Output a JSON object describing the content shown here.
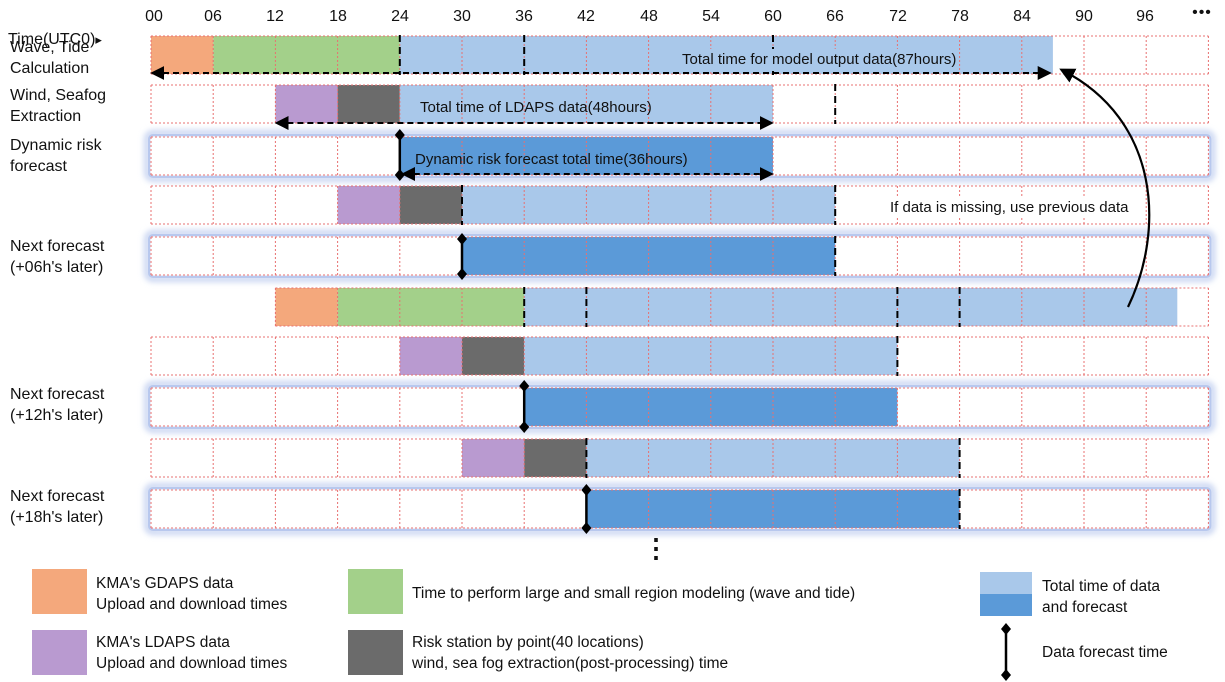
{
  "header": {
    "time_label": "Time(UTC0)",
    "time_arrow": "▸",
    "ellipsis": "•••"
  },
  "ticks": [
    "00",
    "06",
    "12",
    "18",
    "24",
    "30",
    "36",
    "42",
    "48",
    "54",
    "60",
    "66",
    "72",
    "78",
    "84",
    "90",
    "96"
  ],
  "colors": {
    "gdaps": "#f4a87c",
    "modeling": "#a3d08a",
    "ldaps": "#b99ad0",
    "risk_station": "#6b6b6b",
    "total_light": "#a9c8ea",
    "total_dark": "#5b9ad8",
    "grid": "#e87070",
    "glow": "#c9d5f2"
  },
  "rows": [
    {
      "label": "Wave, Tide\nCalculation"
    },
    {
      "label": "Wind, Seafog\nExtraction"
    },
    {
      "label": "Dynamic risk\nforecast"
    },
    {
      "label": ""
    },
    {
      "label": "Next forecast\n(+06h's later)"
    },
    {
      "label": ""
    },
    {
      "label": ""
    },
    {
      "label": "Next forecast\n(+12h's later)"
    },
    {
      "label": ""
    },
    {
      "label": "Next forecast\n(+18h's later)"
    }
  ],
  "annotations": {
    "model_output": "Total time for model output data(87hours)",
    "ldaps_total": "Total time of LDAPS data(48hours)",
    "dynamic_total": "Dynamic risk forecast total time(36hours)",
    "missing": "If data is missing, use previous data",
    "more": "⋮"
  },
  "legend": {
    "gdaps": "KMA's GDAPS data\nUpload and download times",
    "modeling": "Time to perform large and small region modeling (wave and tide)",
    "total": "Total time of data\nand forecast",
    "ldaps": "KMA's LDAPS data\nUpload and download times",
    "risk": "Risk station by point(40 locations)\nwind, sea fog extraction(post-processing) time",
    "forecast_time": "Data forecast time"
  }
}
